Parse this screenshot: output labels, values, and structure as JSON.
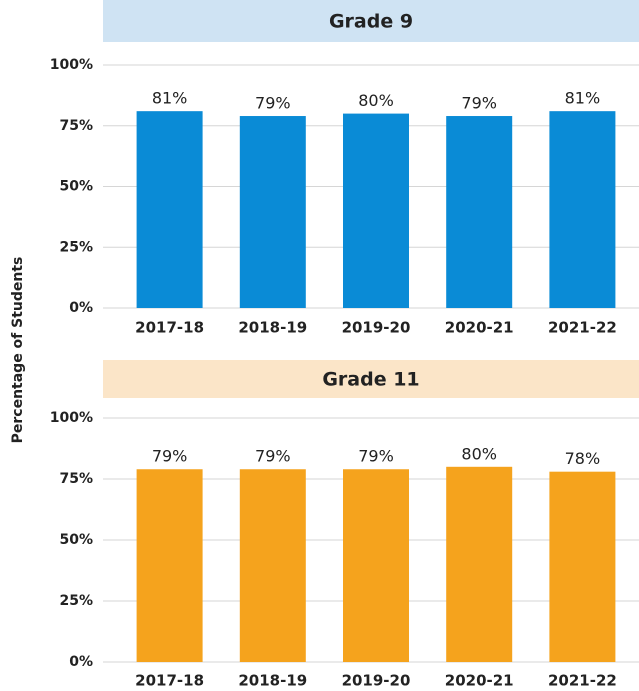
{
  "y_label": "Percentage of Students",
  "chart_data": [
    {
      "type": "bar",
      "title": "Grade 9",
      "header_color": "#cfe3f3",
      "categories": [
        "2017-18",
        "2018-19",
        "2019-20",
        "2020-21",
        "2021-22"
      ],
      "values": [
        81,
        79,
        80,
        79,
        81
      ],
      "value_labels": [
        "81%",
        "79%",
        "80%",
        "79%",
        "81%"
      ],
      "color": "#0a8bd6",
      "ylim": [
        0,
        100
      ],
      "yticks": [
        {
          "value": 0,
          "label": "0%"
        },
        {
          "value": 25,
          "label": "25%"
        },
        {
          "value": 50,
          "label": "50%"
        },
        {
          "value": 75,
          "label": "75%"
        },
        {
          "value": 100,
          "label": "100%"
        }
      ],
      "grid": true
    },
    {
      "type": "bar",
      "title": "Grade 11",
      "header_color": "#fbe5c8",
      "categories": [
        "2017-18",
        "2018-19",
        "2019-20",
        "2020-21",
        "2021-22"
      ],
      "values": [
        79,
        79,
        79,
        80,
        78
      ],
      "value_labels": [
        "79%",
        "79%",
        "79%",
        "80%",
        "78%"
      ],
      "color": "#f5a31d",
      "ylim": [
        0,
        100
      ],
      "yticks": [
        {
          "value": 0,
          "label": "0%"
        },
        {
          "value": 25,
          "label": "25%"
        },
        {
          "value": 50,
          "label": "50%"
        },
        {
          "value": 75,
          "label": "75%"
        },
        {
          "value": 100,
          "label": "100%"
        }
      ],
      "grid": true
    }
  ]
}
